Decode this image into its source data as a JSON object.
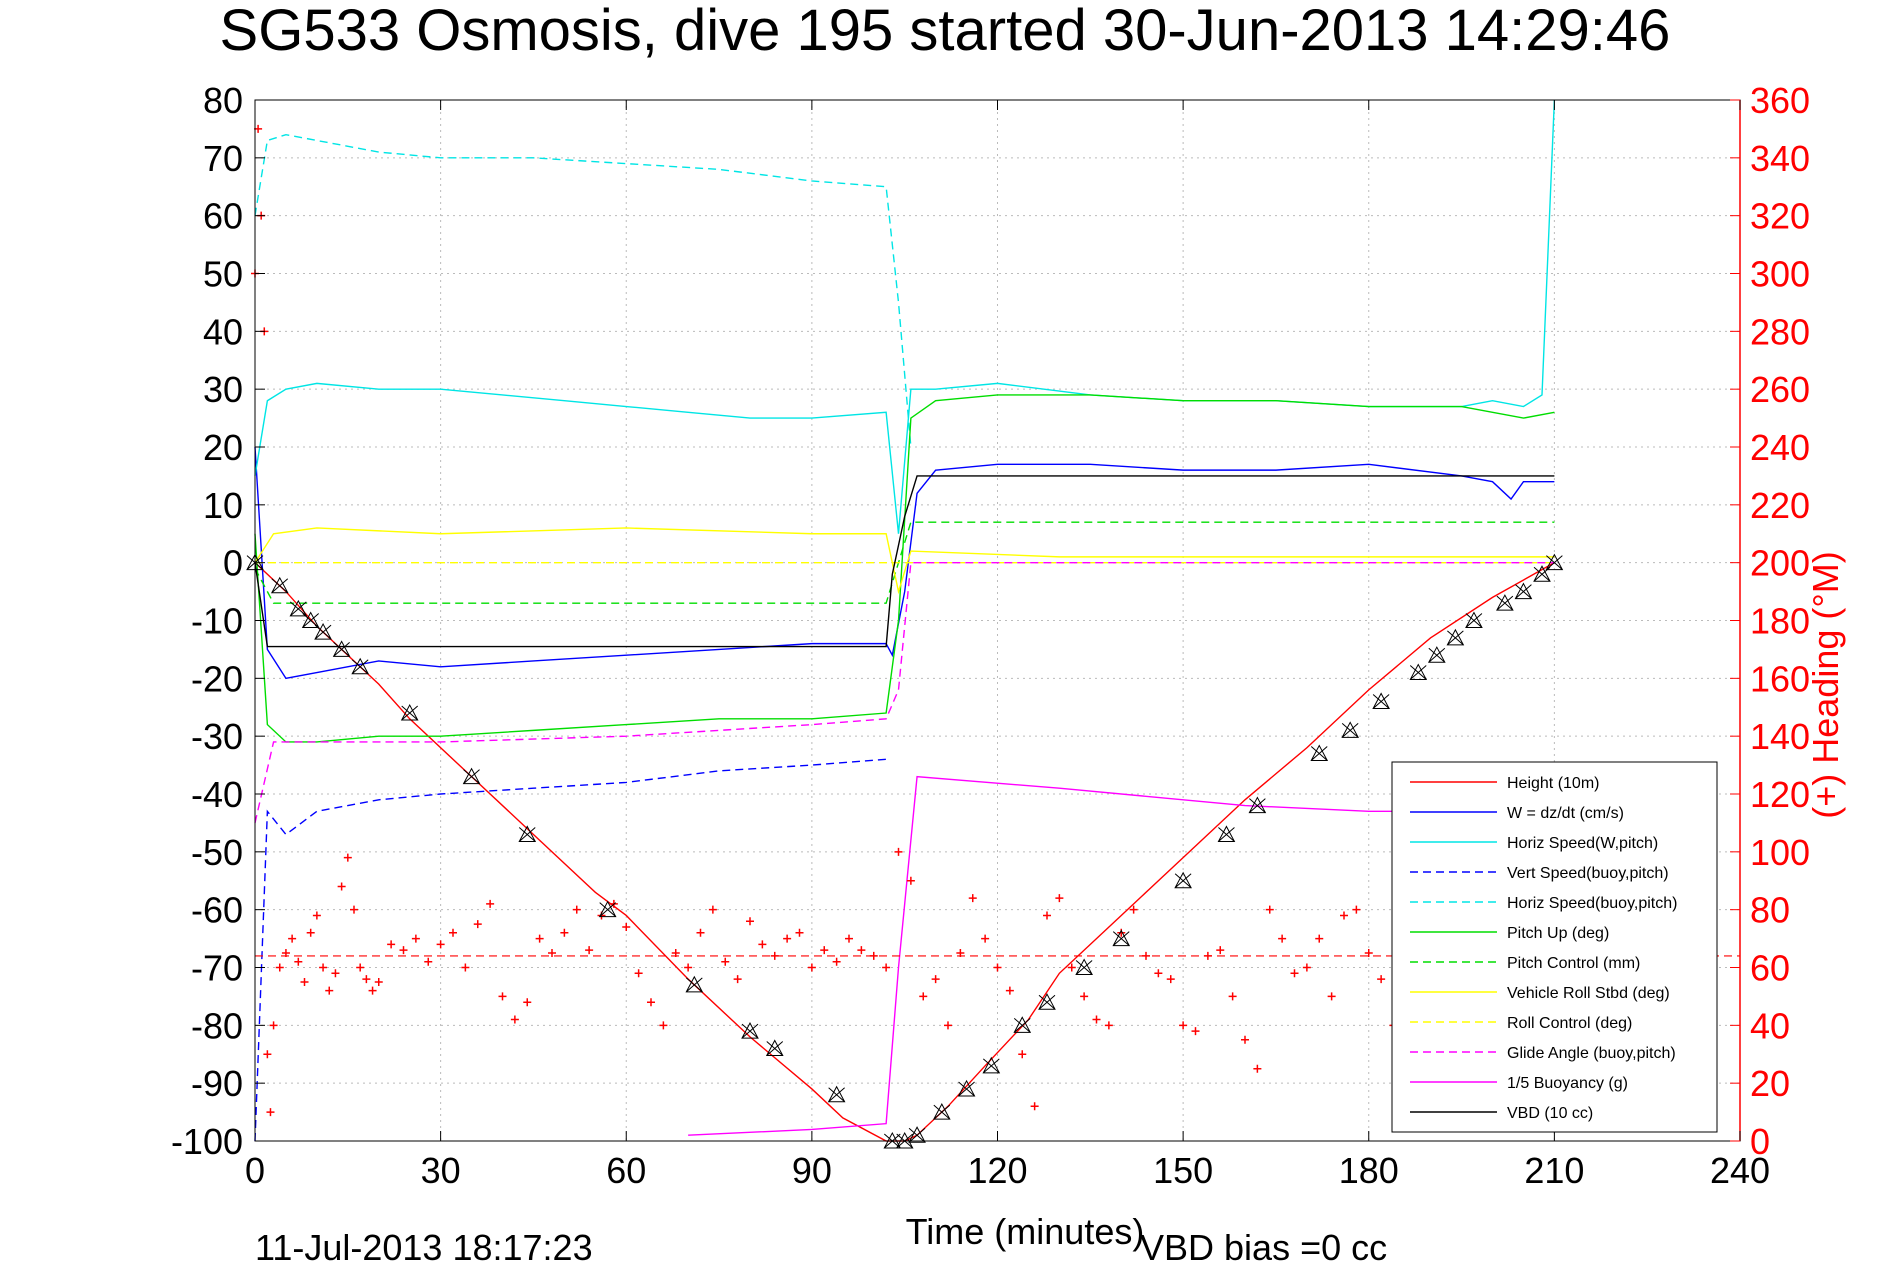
{
  "chart_data": {
    "type": "line",
    "title": "SG533 Osmosis, dive 195 started 30-Jun-2013 14:29:46",
    "xlabel": "Time (minutes)",
    "ylabel_right": "(+) Heading (°M)",
    "xlim": [
      0,
      240
    ],
    "ylim": [
      -100,
      80
    ],
    "ylim_right": [
      0,
      360
    ],
    "x_ticks": [
      "0",
      "30",
      "60",
      "90",
      "120",
      "150",
      "180",
      "210",
      "240"
    ],
    "y_ticks": [
      "80",
      "70",
      "60",
      "50",
      "40",
      "30",
      "20",
      "10",
      "0",
      "-10",
      "-20",
      "-30",
      "-40",
      "-50",
      "-60",
      "-70",
      "-80",
      "-90",
      "-100"
    ],
    "y_ticks_right": [
      "360",
      "340",
      "320",
      "300",
      "280",
      "260",
      "240",
      "220",
      "200",
      "180",
      "160",
      "140",
      "120",
      "100",
      "80",
      "60",
      "40",
      "20",
      "0"
    ],
    "grid": true,
    "legend_position": "bottom-right",
    "footer_left": "11-Jul-2013 18:17:23",
    "footer_right": "VBD bias =0 cc",
    "series": [
      {
        "name": "Height (10m)",
        "color": "#ff0000",
        "dash": "solid",
        "x": [
          0,
          5,
          10,
          15,
          20,
          25,
          35,
          45,
          55,
          60,
          70,
          80,
          90,
          95,
          102,
          105,
          107,
          112,
          118,
          125,
          130,
          140,
          150,
          160,
          170,
          180,
          190,
          200,
          210
        ],
        "y": [
          0,
          -5,
          -11,
          -16,
          -21,
          -27,
          -37,
          -47,
          -57,
          -61,
          -72,
          -82,
          -91,
          -96,
          -100,
          -100,
          -99,
          -94,
          -87,
          -79,
          -71,
          -61,
          -51,
          -41,
          -32,
          -22,
          -13,
          -6,
          0
        ]
      },
      {
        "name": "W = dz/dt (cm/s)",
        "color": "#0000ff",
        "dash": "solid",
        "x": [
          0,
          2,
          5,
          10,
          20,
          30,
          45,
          60,
          75,
          90,
          102,
          103,
          105,
          107,
          110,
          120,
          135,
          150,
          165,
          180,
          195,
          200,
          203,
          205,
          210
        ],
        "y": [
          20,
          -15,
          -20,
          -19,
          -17,
          -18,
          -17,
          -16,
          -15,
          -14,
          -14,
          -16,
          -5,
          12,
          16,
          17,
          17,
          16,
          16,
          17,
          15,
          14,
          11,
          14,
          14
        ]
      },
      {
        "name": "Horiz Speed(W,pitch)",
        "color": "#00e5e5",
        "dash": "solid",
        "x": [
          0,
          2,
          5,
          10,
          20,
          30,
          40,
          50,
          60,
          70,
          80,
          90,
          102,
          104,
          106,
          110,
          120,
          135,
          150,
          165,
          180,
          195,
          200,
          205,
          208,
          210
        ],
        "y": [
          15,
          28,
          30,
          31,
          30,
          30,
          29,
          28,
          27,
          26,
          25,
          25,
          26,
          5,
          30,
          30,
          31,
          29,
          28,
          28,
          27,
          27,
          28,
          27,
          29,
          80
        ]
      },
      {
        "name": "Vert Speed(buoy,pitch)",
        "color": "#0000ff",
        "dash": "dashed",
        "x": [
          0,
          2,
          5,
          10,
          20,
          30,
          45,
          60,
          75,
          90,
          102
        ],
        "y": [
          -100,
          -43,
          -47,
          -43,
          -41,
          -40,
          -39,
          -38,
          -36,
          -35,
          -34
        ]
      },
      {
        "name": "Horiz Speed(buoy,pitch)",
        "color": "#00e5e5",
        "dash": "dashed",
        "x": [
          0,
          2,
          5,
          10,
          20,
          30,
          45,
          60,
          75,
          90,
          102,
          104,
          106
        ],
        "y": [
          60,
          73,
          74,
          73,
          71,
          70,
          70,
          69,
          68,
          66,
          65,
          45,
          20
        ]
      },
      {
        "name": "Pitch Up (deg)",
        "color": "#00dd00",
        "dash": "solid",
        "x": [
          0,
          2,
          5,
          10,
          20,
          30,
          45,
          60,
          75,
          90,
          102,
          104,
          106,
          110,
          120,
          135,
          150,
          165,
          180,
          195,
          205,
          210
        ],
        "y": [
          5,
          -28,
          -31,
          -31,
          -30,
          -30,
          -29,
          -28,
          -27,
          -27,
          -26,
          -10,
          25,
          28,
          29,
          29,
          28,
          28,
          27,
          27,
          25,
          26
        ]
      },
      {
        "name": "Pitch Control (mm)",
        "color": "#00dd00",
        "dash": "dashed",
        "x": [
          0,
          3,
          102,
          104,
          106,
          210
        ],
        "y": [
          -1,
          -7,
          -7,
          0,
          7,
          7
        ]
      },
      {
        "name": "Vehicle Roll Stbd (deg)",
        "color": "#ffff00",
        "dash": "solid",
        "x": [
          0,
          3,
          10,
          30,
          60,
          90,
          102,
          104,
          106,
          130,
          160,
          190,
          210
        ],
        "y": [
          0,
          5,
          6,
          5,
          6,
          5,
          5,
          -5,
          2,
          1,
          1,
          1,
          1
        ]
      },
      {
        "name": "Roll Control (deg)",
        "color": "#ffff00",
        "dash": "dashed",
        "x": [
          0,
          3,
          102,
          104,
          106,
          210
        ],
        "y": [
          0,
          0,
          0,
          0,
          0,
          0
        ]
      },
      {
        "name": "Glide Angle (buoy,pitch)",
        "color": "#ff00ff",
        "dash": "dashed",
        "x": [
          0,
          3,
          10,
          30,
          60,
          90,
          102,
          104,
          106,
          210
        ],
        "y": [
          -45,
          -31,
          -31,
          -31,
          -30,
          -28,
          -27,
          -22,
          0,
          0
        ]
      },
      {
        "name": "1/5 Buoyancy (g)",
        "color": "#ff00ff",
        "dash": "solid",
        "x": [
          70,
          90,
          102,
          104,
          107,
          130,
          160,
          180,
          188
        ],
        "y": [
          -99,
          -98,
          -97,
          -70,
          -37,
          -39,
          -42,
          -43,
          -43
        ]
      },
      {
        "name": "VBD (10 cc)",
        "color": "#000000",
        "dash": "solid",
        "x": [
          0,
          2,
          102,
          103,
          105,
          107,
          210
        ],
        "y": [
          0,
          -14.5,
          -14.5,
          -2,
          8,
          15,
          15
        ]
      }
    ],
    "heading_points": {
      "name": "Heading (+)",
      "color": "#ff0000",
      "marker": "+",
      "axis": "right",
      "reference_line": 64,
      "x": [
        0,
        0.5,
        1,
        1.5,
        2,
        2.5,
        3,
        4,
        5,
        6,
        7,
        8,
        9,
        10,
        11,
        12,
        13,
        14,
        15,
        16,
        17,
        18,
        19,
        20,
        22,
        24,
        26,
        28,
        30,
        32,
        34,
        36,
        38,
        40,
        42,
        44,
        46,
        48,
        50,
        52,
        54,
        56,
        58,
        60,
        62,
        64,
        66,
        68,
        70,
        72,
        74,
        76,
        78,
        80,
        82,
        84,
        86,
        88,
        90,
        92,
        94,
        96,
        98,
        100,
        102,
        104,
        106,
        108,
        110,
        112,
        114,
        116,
        118,
        120,
        122,
        124,
        126,
        128,
        130,
        132,
        134,
        136,
        138,
        140,
        142,
        144,
        146,
        148,
        150,
        152,
        154,
        156,
        158,
        160,
        162,
        164,
        166,
        168,
        170,
        172,
        174,
        176,
        178,
        180,
        182,
        184,
        186,
        188
      ],
      "y": [
        300,
        350,
        320,
        280,
        30,
        10,
        40,
        60,
        65,
        70,
        62,
        55,
        72,
        78,
        60,
        52,
        58,
        88,
        98,
        80,
        60,
        56,
        52,
        55,
        68,
        66,
        70,
        62,
        68,
        72,
        60,
        75,
        82,
        50,
        42,
        48,
        70,
        65,
        72,
        80,
        66,
        78,
        82,
        74,
        58,
        48,
        40,
        65,
        60,
        72,
        80,
        62,
        56,
        76,
        68,
        64,
        70,
        72,
        60,
        66,
        62,
        70,
        66,
        64,
        60,
        100,
        90,
        50,
        56,
        40,
        65,
        84,
        70,
        60,
        52,
        30,
        12,
        78,
        84,
        60,
        50,
        42,
        40,
        72,
        80,
        64,
        58,
        56,
        40,
        38,
        64,
        66,
        50,
        35,
        25,
        80,
        70,
        58,
        60,
        70,
        50,
        78,
        80,
        65,
        56,
        40,
        30,
        80
      ]
    },
    "height_markers": {
      "marker": "triangle",
      "color": "#000000",
      "x": [
        0,
        4,
        7,
        9,
        11,
        14,
        17,
        25,
        35,
        44,
        57,
        71,
        80,
        84,
        94,
        103,
        105,
        107,
        111,
        115,
        119,
        124,
        128,
        134,
        140,
        150,
        157,
        162,
        172,
        177,
        182,
        188,
        191,
        194,
        197,
        202,
        205,
        208,
        210
      ],
      "y": [
        0,
        -4,
        -8,
        -10,
        -12,
        -15,
        -18,
        -26,
        -37,
        -47,
        -60,
        -73,
        -81,
        -84,
        -92,
        -100,
        -100,
        -99,
        -95,
        -91,
        -87,
        -80,
        -76,
        -70,
        -65,
        -55,
        -47,
        -42,
        -33,
        -29,
        -24,
        -19,
        -16,
        -13,
        -10,
        -7,
        -5,
        -2,
        0
      ]
    }
  }
}
